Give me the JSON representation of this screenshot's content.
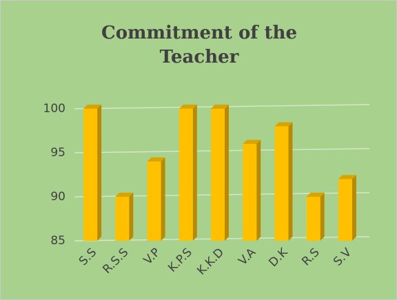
{
  "chart_data": {
    "type": "bar",
    "title": "Commitment of the Teacher",
    "categories": [
      "S.S",
      "R.S.S",
      "V.P",
      "K.P.S",
      "K.K.D",
      "V.A",
      "D.K",
      "R.S",
      "S.V"
    ],
    "values": [
      100,
      90,
      94,
      100,
      100,
      96,
      98,
      90,
      92
    ],
    "color": "#ffc000",
    "ylim": [
      85,
      100
    ],
    "yticks": [
      85,
      90,
      95,
      100
    ],
    "grid": true
  }
}
